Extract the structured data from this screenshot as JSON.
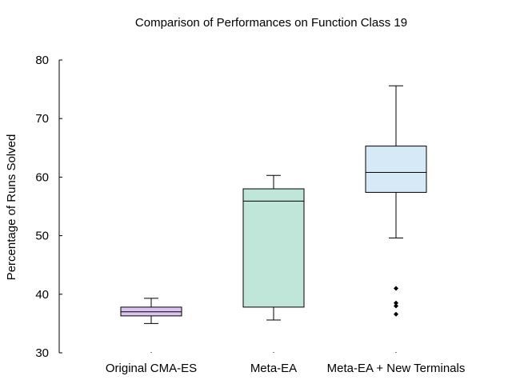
{
  "chart_data": {
    "type": "box",
    "title": "Comparison of Performances on Function Class 19",
    "xlabel": "",
    "ylabel": "Percentage of Runs Solved",
    "ylim": [
      30,
      80
    ],
    "yticks": [
      30,
      40,
      50,
      60,
      70,
      80
    ],
    "grid": false,
    "categories": [
      "Original CMA-ES",
      "Meta-EA",
      "Meta-EA + New Terminals"
    ],
    "boxes": [
      {
        "category": "Original CMA-ES",
        "whisker_low": 35.0,
        "q1": 36.3,
        "median": 37.0,
        "q3": 37.8,
        "whisker_high": 39.3,
        "outliers": [],
        "color": "#dcc4f0"
      },
      {
        "category": "Meta-EA",
        "whisker_low": 35.6,
        "q1": 37.8,
        "median": 55.9,
        "q3": 58.0,
        "whisker_high": 60.3,
        "outliers": [],
        "color": "#c0e6da"
      },
      {
        "category": "Meta-EA + New Terminals",
        "whisker_low": 49.6,
        "q1": 57.4,
        "median": 60.8,
        "q3": 65.3,
        "whisker_high": 75.6,
        "outliers": [
          41.0,
          38.5,
          38.0,
          36.6
        ],
        "color": "#d5e9f7"
      }
    ]
  }
}
